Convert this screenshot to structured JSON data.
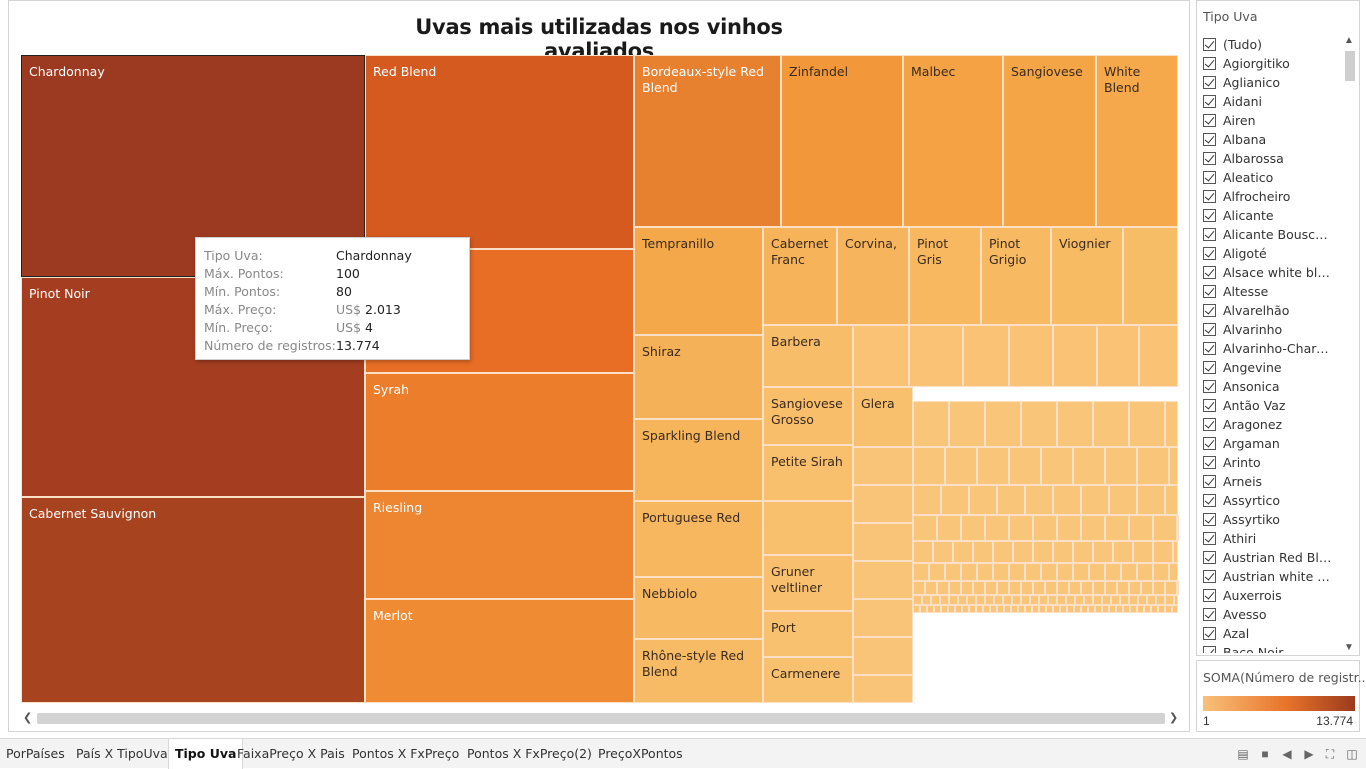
{
  "title": "Uvas mais utilizadas nos vinhos avaliados",
  "treemap": {
    "cells": [
      {
        "label": "Chardonnay",
        "color": "#9b3a20",
        "selected": true
      },
      {
        "label": "Pinot Noir",
        "color": "#a53e21"
      },
      {
        "label": "Cabernet Sauvignon",
        "color": "#a8431f"
      },
      {
        "label": "Red Blend",
        "color": "#d45a1f"
      },
      {
        "label": "Bordeaux-style Red Blend",
        "color": "#e8812f"
      },
      {
        "label": "Syrah",
        "color": "#ec7d2b"
      },
      {
        "label": "Riesling",
        "color": "#ee8530"
      },
      {
        "label": "Merlot",
        "color": "#ef8c33"
      },
      {
        "label": "Zinfandel",
        "color": "#f2973a"
      },
      {
        "label": "Malbec",
        "color": "#f4a244"
      },
      {
        "label": "Sangiovese",
        "color": "#f4a646"
      },
      {
        "label": "White Blend",
        "color": "#f5a94a"
      },
      {
        "label": "Tempranillo",
        "color": "#f4a84a"
      },
      {
        "label": "Cabernet Franc",
        "color": "#f6b35a"
      },
      {
        "label": "Corvina,",
        "color": "#f6b55c"
      },
      {
        "label": "Pinot Gris",
        "color": "#f7b85f"
      },
      {
        "label": "Pinot Grigio",
        "color": "#f7ba62"
      },
      {
        "label": "Viognier",
        "color": "#f7bb64"
      },
      {
        "label": "Shiraz",
        "color": "#f5b157"
      },
      {
        "label": "Sparkling Blend",
        "color": "#f6b45b"
      },
      {
        "label": "Portuguese Red",
        "color": "#f6b75f"
      },
      {
        "label": "Nebbiolo",
        "color": "#f7ba63"
      },
      {
        "label": "Rhône-style Red Blend",
        "color": "#f7bb65"
      },
      {
        "label": "Barbera",
        "color": "#f8bd68"
      },
      {
        "label": "Sangiovese Grosso",
        "color": "#f8be6a"
      },
      {
        "label": "Glera",
        "color": "#f8bf6c"
      },
      {
        "label": "Petite Sirah",
        "color": "#f8bf6c"
      },
      {
        "label": "Gruner veltliner",
        "color": "#f8c06e"
      },
      {
        "label": "Port",
        "color": "#f8c16f"
      },
      {
        "label": "Carmenere",
        "color": "#f8c170"
      }
    ]
  },
  "tooltip": {
    "rows": [
      {
        "key": "Tipo Uva:",
        "value": "Chardonnay"
      },
      {
        "key": "Máx. Pontos:",
        "value": "100"
      },
      {
        "key": "Mín. Pontos:",
        "value": "80"
      },
      {
        "key": "Máx. Preço:",
        "prefix": "US$",
        "value": "2.013"
      },
      {
        "key": "Mín. Preço:",
        "prefix": "US$",
        "value": "4"
      },
      {
        "key": "Número de registros:",
        "value": "13.774"
      }
    ]
  },
  "filter": {
    "title": "Tipo Uva",
    "items": [
      "(Tudo)",
      "Agiorgitiko",
      "Aglianico",
      "Aidani",
      "Airen",
      "Albana",
      "Albarossa",
      "Aleatico",
      "Alfrocheiro",
      "Alicante",
      "Alicante Bouschet",
      "Aligoté",
      "Alsace white blend",
      "Altesse",
      "Alvarelhão",
      "Alvarinho",
      "Alvarinho-Chardo...",
      "Angevine",
      "Ansonica",
      "Antão Vaz",
      "Aragonez",
      "Argaman",
      "Arinto",
      "Arneis",
      "Assyrtico",
      "Assyrtiko",
      "Athiri",
      "Austrian Red Blend",
      "Austrian white ble...",
      "Auxerrois",
      "Avesso",
      "Azal",
      "Baco Noir"
    ]
  },
  "legend": {
    "title": "SOMA(Número de registr...",
    "min": "1",
    "max": "13.774"
  },
  "tabs": [
    {
      "label": "PorPaíses"
    },
    {
      "label": "País X TipoUva"
    },
    {
      "label": "Tipo Uva",
      "active": true
    },
    {
      "label": "FaixaPreço X Pais"
    },
    {
      "label": "Pontos X FxPreço"
    },
    {
      "label": "Pontos X FxPreço(2)"
    },
    {
      "label": "PreçoXPontos"
    }
  ]
}
